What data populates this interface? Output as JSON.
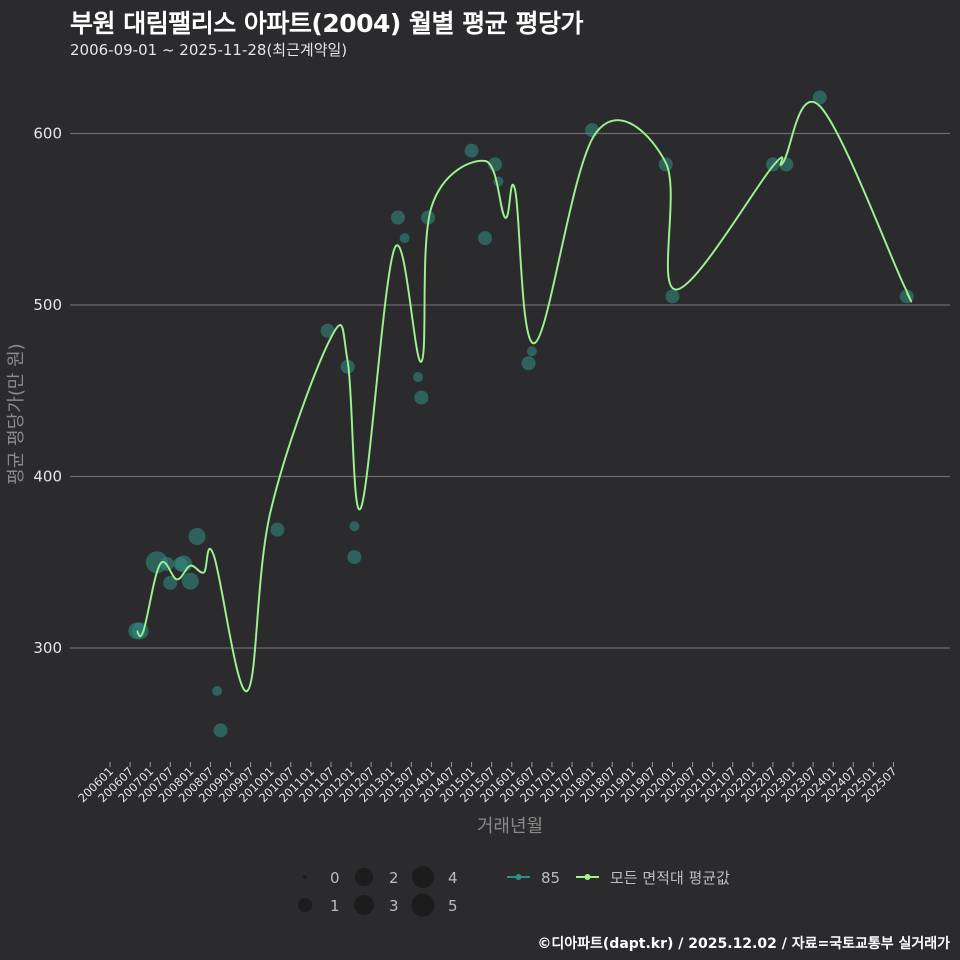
{
  "header": {
    "title": "부원 대림팰리스 아파트(2004) 월별 평균 평당가",
    "subtitle": "2006-09-01 ~ 2025-11-28(최근계약일)"
  },
  "footer": {
    "credit": "©디아파트(dapt.kr) / 2025.12.02 / 자료=국토교통부 실거래가"
  },
  "colors": {
    "background": "#2b2a2c",
    "gridline": "#6b6b6b",
    "series_85": "#2f8f86",
    "series_avg": "#a6f08a"
  },
  "legend": {
    "size_title": "",
    "sizes": [
      "0",
      "1",
      "2",
      "3",
      "4",
      "5"
    ],
    "series": [
      {
        "label": "85",
        "color": "#2f8f86"
      },
      {
        "label": "모든 면적대 평균값",
        "color": "#a6f08a"
      }
    ]
  },
  "chart_data": {
    "type": "line",
    "title": "부원 대림팰리스 아파트(2004) 월별 평균 평당가",
    "subtitle": "2006-09-01 ~ 2025-11-28(최근계약일)",
    "xlabel": "거래년월",
    "ylabel": "평균 평당가(만 원)",
    "ylim": [
      235,
      630
    ],
    "yticks": [
      300,
      400,
      500,
      600
    ],
    "grid": true,
    "legend_position": "bottom",
    "x_tick_labels": [
      "200601",
      "200607",
      "200701",
      "200707",
      "200801",
      "200807",
      "200901",
      "200907",
      "201001",
      "201007",
      "201101",
      "201107",
      "201201",
      "201207",
      "201301",
      "201307",
      "201401",
      "201407",
      "201501",
      "201507",
      "201601",
      "201607",
      "201701",
      "201707",
      "201801",
      "201807",
      "201901",
      "201907",
      "202001",
      "202007",
      "202101",
      "202107",
      "202201",
      "202207",
      "202301",
      "202307",
      "202401",
      "202407",
      "202501",
      "202507"
    ],
    "series": [
      {
        "name": "85",
        "kind": "scatter-bubble",
        "points": [
          {
            "x": "200609",
            "y": 310,
            "n": 3
          },
          {
            "x": "200610",
            "y": 310,
            "n": 3
          },
          {
            "x": "200703",
            "y": 350,
            "n": 5
          },
          {
            "x": "200706",
            "y": 349,
            "n": 2
          },
          {
            "x": "200707",
            "y": 338,
            "n": 2
          },
          {
            "x": "200710",
            "y": 349,
            "n": 2
          },
          {
            "x": "200711",
            "y": 349,
            "n": 3
          },
          {
            "x": "200801",
            "y": 339,
            "n": 3
          },
          {
            "x": "200803",
            "y": 365,
            "n": 3
          },
          {
            "x": "200809",
            "y": 275,
            "n": 1
          },
          {
            "x": "200810",
            "y": 252,
            "n": 2
          },
          {
            "x": "201003",
            "y": 369,
            "n": 2
          },
          {
            "x": "201106",
            "y": 485,
            "n": 2
          },
          {
            "x": "201112",
            "y": 464,
            "n": 2
          },
          {
            "x": "201202",
            "y": 371,
            "n": 1
          },
          {
            "x": "201202",
            "y": 353,
            "n": 2
          },
          {
            "x": "201303",
            "y": 551,
            "n": 2
          },
          {
            "x": "201305",
            "y": 539,
            "n": 1
          },
          {
            "x": "201309",
            "y": 458,
            "n": 1
          },
          {
            "x": "201310",
            "y": 446,
            "n": 2
          },
          {
            "x": "201312",
            "y": 551,
            "n": 2
          },
          {
            "x": "201501",
            "y": 590,
            "n": 2
          },
          {
            "x": "201505",
            "y": 539,
            "n": 2
          },
          {
            "x": "201508",
            "y": 582,
            "n": 2
          },
          {
            "x": "201509",
            "y": 572,
            "n": 1
          },
          {
            "x": "201607",
            "y": 473,
            "n": 1
          },
          {
            "x": "201606",
            "y": 466,
            "n": 2
          },
          {
            "x": "201801",
            "y": 602,
            "n": 2
          },
          {
            "x": "201911",
            "y": 582,
            "n": 2
          },
          {
            "x": "202001",
            "y": 505,
            "n": 2
          },
          {
            "x": "202207",
            "y": 582,
            "n": 2
          },
          {
            "x": "202211",
            "y": 582,
            "n": 2
          },
          {
            "x": "202309",
            "y": 621,
            "n": 2
          },
          {
            "x": "202511",
            "y": 505,
            "n": 2
          }
        ]
      },
      {
        "name": "모든 면적대 평균값",
        "kind": "smoothed-line",
        "points": [
          {
            "x": "200609",
            "y": 310
          },
          {
            "x": "200611",
            "y": 310
          },
          {
            "x": "200704",
            "y": 349
          },
          {
            "x": "200709",
            "y": 340
          },
          {
            "x": "200801",
            "y": 348
          },
          {
            "x": "200805",
            "y": 344
          },
          {
            "x": "200808",
            "y": 354
          },
          {
            "x": "200906",
            "y": 275
          },
          {
            "x": "201001",
            "y": 380
          },
          {
            "x": "201107",
            "y": 481
          },
          {
            "x": "201112",
            "y": 467
          },
          {
            "x": "201204",
            "y": 382
          },
          {
            "x": "201302",
            "y": 533
          },
          {
            "x": "201310",
            "y": 467
          },
          {
            "x": "201401",
            "y": 557
          },
          {
            "x": "201505",
            "y": 584
          },
          {
            "x": "201511",
            "y": 551
          },
          {
            "x": "201602",
            "y": 567
          },
          {
            "x": "201608",
            "y": 478
          },
          {
            "x": "201802",
            "y": 600
          },
          {
            "x": "201911",
            "y": 583
          },
          {
            "x": "202002",
            "y": 509
          },
          {
            "x": "202207",
            "y": 581
          },
          {
            "x": "202210",
            "y": 583
          },
          {
            "x": "202309",
            "y": 616
          },
          {
            "x": "202510",
            "y": 512
          },
          {
            "x": "202511",
            "y": 507
          }
        ]
      }
    ]
  }
}
